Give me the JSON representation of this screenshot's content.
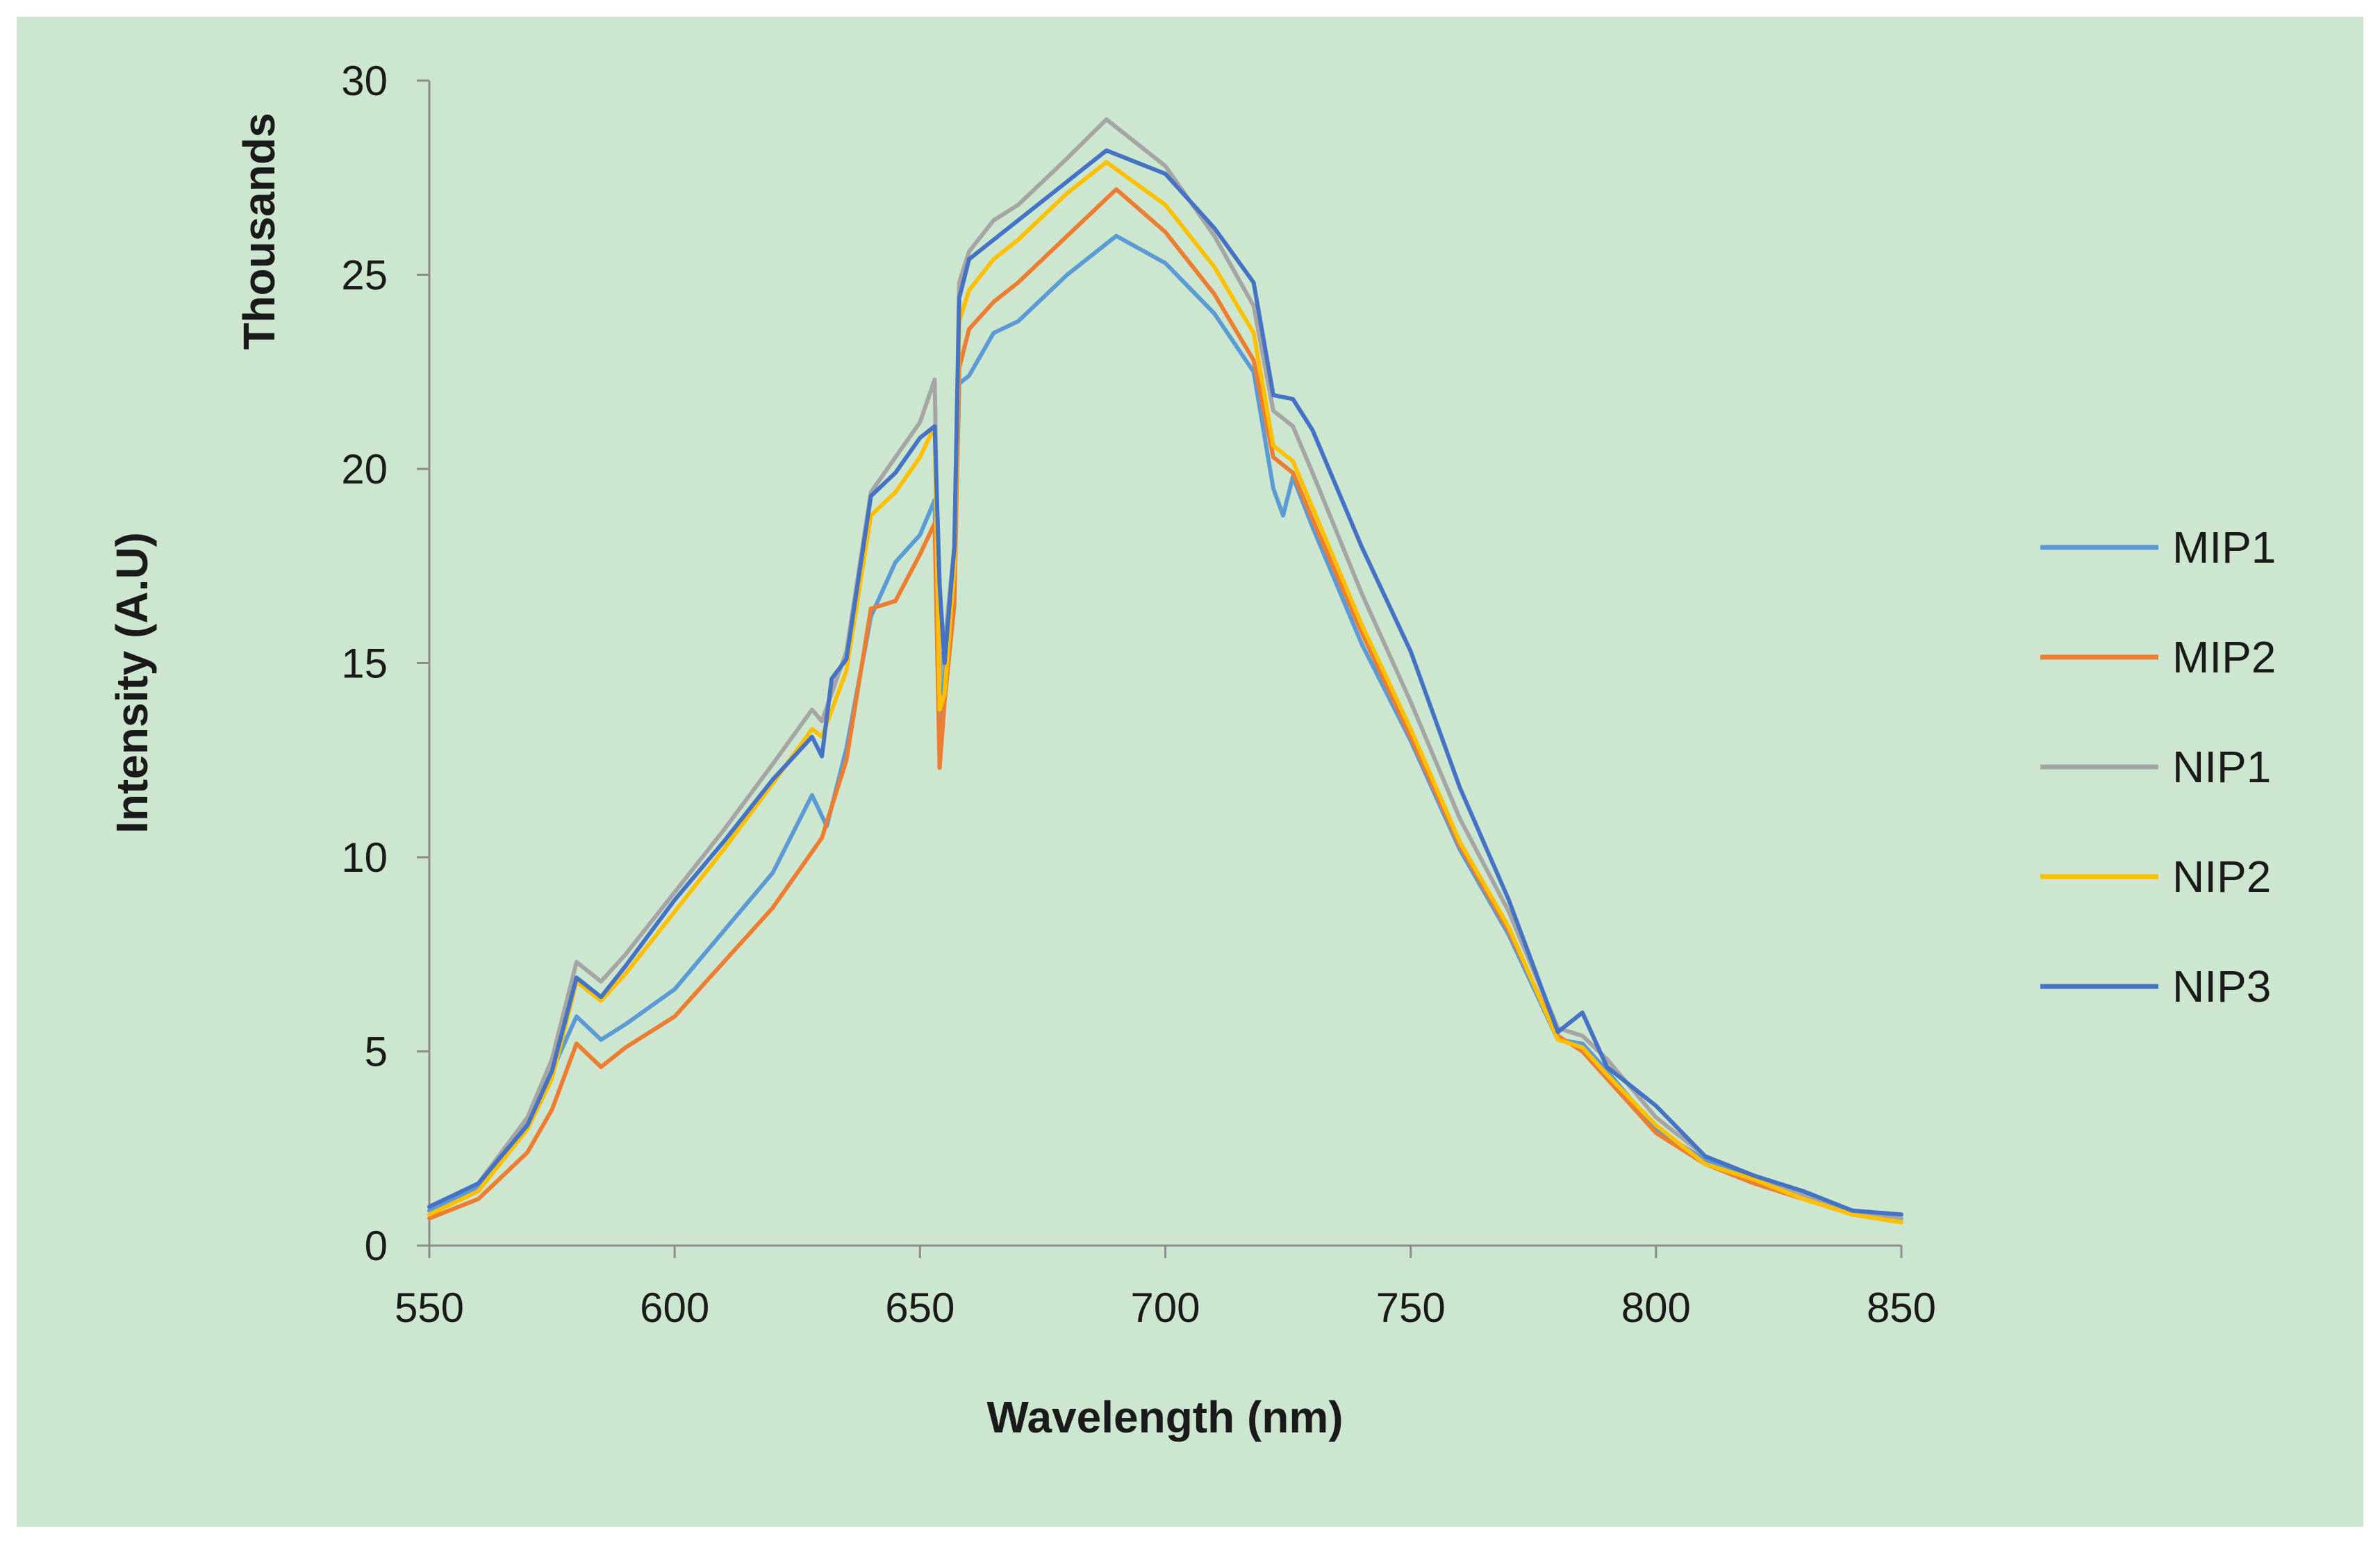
{
  "chart_data": {
    "type": "line",
    "title": "",
    "xlabel": "Wavelength (nm)",
    "ylabel": "Intensity (A.U)",
    "y_unit_label": "Thousands",
    "xlim": [
      550,
      850
    ],
    "ylim": [
      0,
      30
    ],
    "x_ticks": [
      550,
      600,
      650,
      700,
      750,
      800,
      850
    ],
    "y_ticks": [
      0,
      5,
      10,
      15,
      20,
      25,
      30
    ],
    "grid": false,
    "legend_position": "right",
    "series": [
      {
        "name": "MIP1",
        "color": "#5b9bd5",
        "points": [
          [
            550,
            0.9
          ],
          [
            560,
            1.5
          ],
          [
            570,
            3.2
          ],
          [
            575,
            4.5
          ],
          [
            580,
            5.9
          ],
          [
            585,
            5.3
          ],
          [
            590,
            5.7
          ],
          [
            600,
            6.6
          ],
          [
            610,
            8.1
          ],
          [
            620,
            9.6
          ],
          [
            628,
            11.6
          ],
          [
            631,
            10.8
          ],
          [
            635,
            12.8
          ],
          [
            640,
            16.2
          ],
          [
            645,
            17.6
          ],
          [
            650,
            18.3
          ],
          [
            653,
            19.2
          ],
          [
            654,
            13.0
          ],
          [
            655,
            15.0
          ],
          [
            657,
            17.0
          ],
          [
            658,
            22.2
          ],
          [
            660,
            22.4
          ],
          [
            665,
            23.5
          ],
          [
            670,
            23.8
          ],
          [
            680,
            25.0
          ],
          [
            690,
            26.0
          ],
          [
            700,
            25.3
          ],
          [
            710,
            24.0
          ],
          [
            718,
            22.5
          ],
          [
            722,
            19.5
          ],
          [
            724,
            18.8
          ],
          [
            726,
            19.8
          ],
          [
            730,
            18.5
          ],
          [
            740,
            15.5
          ],
          [
            750,
            13.0
          ],
          [
            760,
            10.2
          ],
          [
            770,
            8.0
          ],
          [
            780,
            5.3
          ],
          [
            785,
            5.2
          ],
          [
            790,
            4.5
          ],
          [
            800,
            3.0
          ],
          [
            810,
            2.2
          ],
          [
            820,
            1.7
          ],
          [
            830,
            1.3
          ],
          [
            840,
            0.9
          ],
          [
            850,
            0.7
          ]
        ]
      },
      {
        "name": "MIP2",
        "color": "#ed7d31",
        "points": [
          [
            550,
            0.7
          ],
          [
            560,
            1.2
          ],
          [
            570,
            2.4
          ],
          [
            575,
            3.5
          ],
          [
            580,
            5.2
          ],
          [
            585,
            4.6
          ],
          [
            590,
            5.1
          ],
          [
            600,
            5.9
          ],
          [
            610,
            7.3
          ],
          [
            620,
            8.7
          ],
          [
            630,
            10.5
          ],
          [
            635,
            12.5
          ],
          [
            640,
            16.4
          ],
          [
            645,
            16.6
          ],
          [
            650,
            17.8
          ],
          [
            653,
            18.6
          ],
          [
            654,
            12.3
          ],
          [
            655,
            14.0
          ],
          [
            657,
            16.5
          ],
          [
            658,
            22.6
          ],
          [
            660,
            23.6
          ],
          [
            665,
            24.3
          ],
          [
            670,
            24.8
          ],
          [
            680,
            26.0
          ],
          [
            690,
            27.2
          ],
          [
            700,
            26.1
          ],
          [
            710,
            24.5
          ],
          [
            718,
            22.8
          ],
          [
            722,
            20.3
          ],
          [
            726,
            19.9
          ],
          [
            730,
            18.7
          ],
          [
            740,
            15.8
          ],
          [
            750,
            13.1
          ],
          [
            760,
            10.3
          ],
          [
            770,
            8.1
          ],
          [
            780,
            5.4
          ],
          [
            785,
            5.0
          ],
          [
            790,
            4.3
          ],
          [
            800,
            2.9
          ],
          [
            810,
            2.1
          ],
          [
            820,
            1.6
          ],
          [
            830,
            1.2
          ],
          [
            840,
            0.8
          ],
          [
            850,
            0.6
          ]
        ]
      },
      {
        "name": "NIP1",
        "color": "#a5a5a5",
        "points": [
          [
            550,
            1.0
          ],
          [
            560,
            1.6
          ],
          [
            570,
            3.3
          ],
          [
            575,
            4.8
          ],
          [
            580,
            7.3
          ],
          [
            585,
            6.8
          ],
          [
            590,
            7.5
          ],
          [
            600,
            9.1
          ],
          [
            610,
            10.7
          ],
          [
            620,
            12.4
          ],
          [
            628,
            13.8
          ],
          [
            630,
            13.5
          ],
          [
            635,
            15.3
          ],
          [
            640,
            19.4
          ],
          [
            645,
            20.3
          ],
          [
            650,
            21.2
          ],
          [
            653,
            22.3
          ],
          [
            654,
            14.5
          ],
          [
            655,
            15.5
          ],
          [
            657,
            18.0
          ],
          [
            658,
            24.8
          ],
          [
            660,
            25.6
          ],
          [
            665,
            26.4
          ],
          [
            670,
            26.8
          ],
          [
            680,
            28.0
          ],
          [
            688,
            29.0
          ],
          [
            700,
            27.8
          ],
          [
            710,
            26.0
          ],
          [
            718,
            24.2
          ],
          [
            722,
            21.5
          ],
          [
            726,
            21.1
          ],
          [
            730,
            19.9
          ],
          [
            740,
            16.8
          ],
          [
            750,
            14.0
          ],
          [
            760,
            11.0
          ],
          [
            770,
            8.6
          ],
          [
            780,
            5.6
          ],
          [
            785,
            5.4
          ],
          [
            790,
            4.8
          ],
          [
            800,
            3.3
          ],
          [
            810,
            2.3
          ],
          [
            820,
            1.8
          ],
          [
            830,
            1.3
          ],
          [
            840,
            0.9
          ],
          [
            850,
            0.7
          ]
        ]
      },
      {
        "name": "NIP2",
        "color": "#ffc000",
        "points": [
          [
            550,
            0.8
          ],
          [
            560,
            1.4
          ],
          [
            570,
            3.0
          ],
          [
            575,
            4.3
          ],
          [
            580,
            6.8
          ],
          [
            585,
            6.3
          ],
          [
            590,
            7.0
          ],
          [
            600,
            8.6
          ],
          [
            610,
            10.2
          ],
          [
            620,
            11.9
          ],
          [
            628,
            13.3
          ],
          [
            630,
            13.1
          ],
          [
            635,
            14.8
          ],
          [
            640,
            18.8
          ],
          [
            645,
            19.4
          ],
          [
            650,
            20.3
          ],
          [
            653,
            21.1
          ],
          [
            654,
            13.8
          ],
          [
            655,
            14.2
          ],
          [
            657,
            17.5
          ],
          [
            658,
            23.8
          ],
          [
            660,
            24.6
          ],
          [
            665,
            25.4
          ],
          [
            670,
            25.9
          ],
          [
            680,
            27.1
          ],
          [
            688,
            27.9
          ],
          [
            700,
            26.8
          ],
          [
            710,
            25.2
          ],
          [
            718,
            23.5
          ],
          [
            722,
            20.6
          ],
          [
            726,
            20.2
          ],
          [
            730,
            19.0
          ],
          [
            740,
            16.0
          ],
          [
            750,
            13.3
          ],
          [
            760,
            10.4
          ],
          [
            770,
            8.2
          ],
          [
            780,
            5.3
          ],
          [
            785,
            5.1
          ],
          [
            790,
            4.4
          ],
          [
            800,
            3.1
          ],
          [
            810,
            2.1
          ],
          [
            820,
            1.7
          ],
          [
            830,
            1.2
          ],
          [
            840,
            0.8
          ],
          [
            850,
            0.6
          ]
        ]
      },
      {
        "name": "NIP3",
        "color": "#4472c4",
        "points": [
          [
            550,
            1.0
          ],
          [
            560,
            1.6
          ],
          [
            570,
            3.1
          ],
          [
            575,
            4.5
          ],
          [
            580,
            6.9
          ],
          [
            585,
            6.4
          ],
          [
            590,
            7.2
          ],
          [
            600,
            8.9
          ],
          [
            610,
            10.4
          ],
          [
            620,
            12.0
          ],
          [
            628,
            13.1
          ],
          [
            630,
            12.6
          ],
          [
            632,
            14.6
          ],
          [
            635,
            15.1
          ],
          [
            640,
            19.3
          ],
          [
            645,
            19.9
          ],
          [
            650,
            20.8
          ],
          [
            653,
            21.1
          ],
          [
            654,
            17.0
          ],
          [
            655,
            15.0
          ],
          [
            657,
            18.0
          ],
          [
            658,
            24.4
          ],
          [
            660,
            25.4
          ],
          [
            665,
            25.9
          ],
          [
            670,
            26.4
          ],
          [
            680,
            27.4
          ],
          [
            688,
            28.2
          ],
          [
            700,
            27.6
          ],
          [
            710,
            26.2
          ],
          [
            718,
            24.8
          ],
          [
            722,
            21.9
          ],
          [
            726,
            21.8
          ],
          [
            730,
            21.0
          ],
          [
            740,
            18.0
          ],
          [
            750,
            15.3
          ],
          [
            760,
            11.8
          ],
          [
            770,
            8.9
          ],
          [
            780,
            5.5
          ],
          [
            785,
            6.0
          ],
          [
            790,
            4.6
          ],
          [
            800,
            3.6
          ],
          [
            810,
            2.3
          ],
          [
            820,
            1.8
          ],
          [
            830,
            1.4
          ],
          [
            840,
            0.9
          ],
          [
            850,
            0.8
          ]
        ]
      }
    ]
  }
}
